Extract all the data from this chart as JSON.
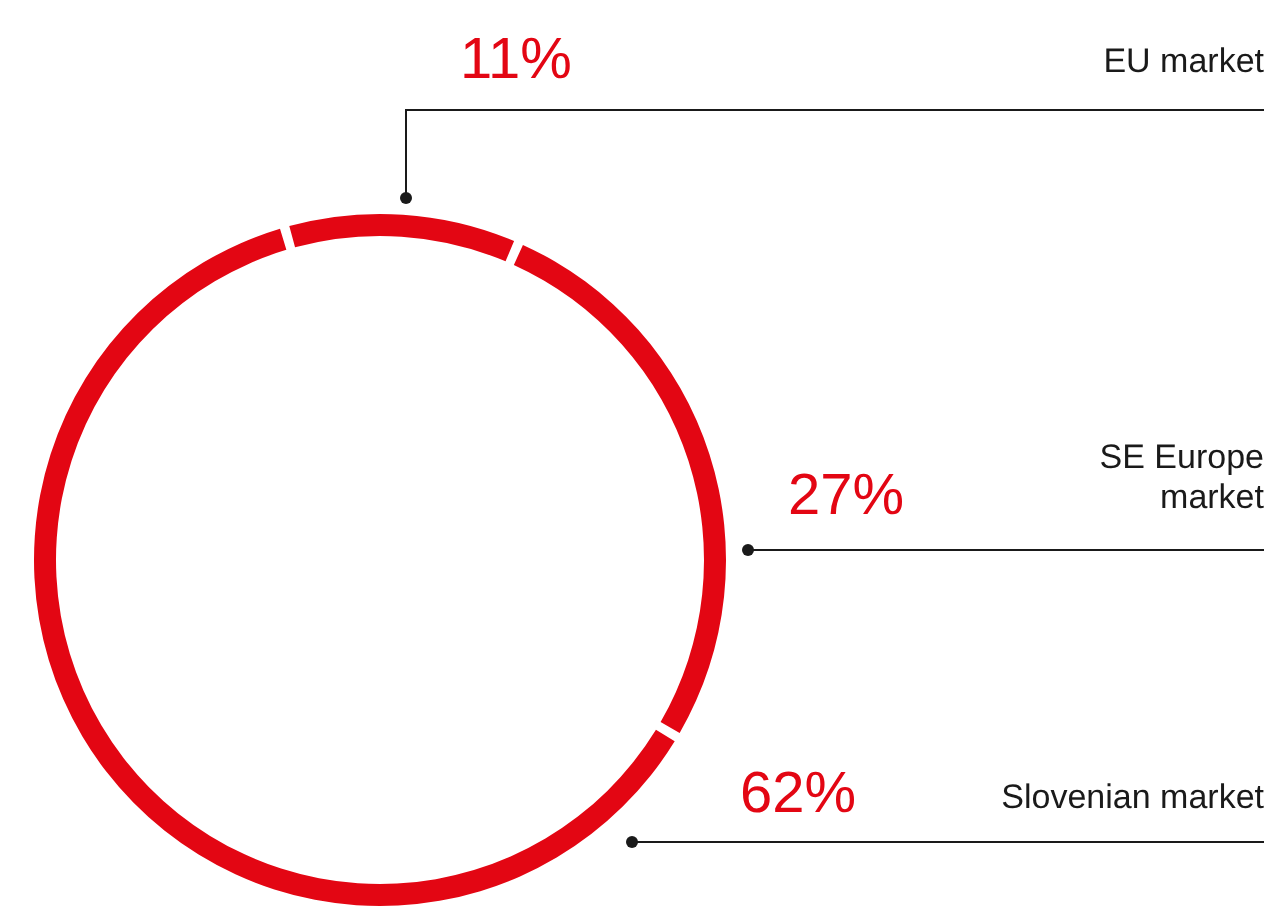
{
  "chart_data": {
    "type": "donut",
    "categories": [
      "EU market",
      "SE Europe market",
      "Slovenian market"
    ],
    "values": [
      11,
      27,
      62
    ],
    "value_labels": [
      "11%",
      "27%",
      "62%"
    ],
    "colors": [
      "#e30613",
      "#e30613",
      "#e30613"
    ]
  }
}
